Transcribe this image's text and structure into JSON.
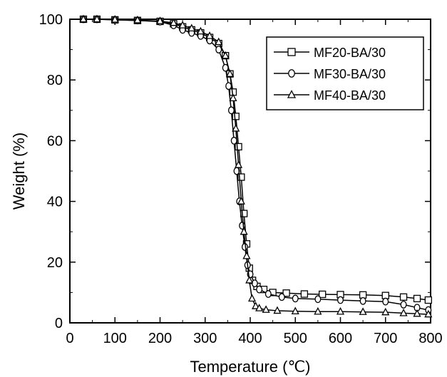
{
  "chart_data": {
    "type": "line",
    "xlabel": "Temperature (℃)",
    "ylabel": "Weight (%)",
    "xlim": [
      0,
      800
    ],
    "ylim": [
      0,
      100
    ],
    "x_ticks": [
      0,
      100,
      200,
      300,
      400,
      500,
      600,
      700,
      800
    ],
    "y_ticks": [
      0,
      20,
      40,
      60,
      80,
      100
    ],
    "grid": false,
    "legend_position": "top-right",
    "series": [
      {
        "name": "MF20-BA/30",
        "marker": "square",
        "x": [
          30,
          60,
          100,
          150,
          200,
          230,
          250,
          270,
          290,
          310,
          330,
          345,
          355,
          362,
          368,
          374,
          380,
          386,
          392,
          398,
          405,
          415,
          430,
          450,
          480,
          520,
          560,
          600,
          650,
          700,
          740,
          770,
          795
        ],
        "y": [
          100,
          100,
          99.8,
          99.6,
          99.3,
          98.5,
          97.5,
          96.5,
          95.5,
          94.0,
          92.0,
          88.0,
          82.0,
          76.0,
          68.0,
          58.0,
          48.0,
          36.0,
          26.0,
          18.0,
          14.0,
          12.0,
          11.0,
          10.0,
          9.8,
          9.5,
          9.4,
          9.3,
          9.2,
          9.0,
          8.5,
          8.0,
          7.5
        ]
      },
      {
        "name": "MF30-BA/30",
        "marker": "circle",
        "x": [
          30,
          60,
          100,
          150,
          200,
          230,
          250,
          270,
          290,
          310,
          330,
          345,
          352,
          358,
          364,
          370,
          376,
          382,
          388,
          394,
          400,
          410,
          420,
          440,
          470,
          500,
          550,
          600,
          650,
          700,
          740,
          770,
          795
        ],
        "y": [
          100,
          100,
          99.8,
          99.6,
          99.2,
          98.0,
          96.5,
          95.5,
          94.5,
          93.0,
          90.0,
          84.0,
          78.0,
          70.0,
          60.0,
          50.0,
          40.0,
          32.0,
          25.0,
          19.0,
          16.0,
          13.0,
          11.0,
          9.5,
          8.5,
          8.0,
          7.8,
          7.5,
          7.2,
          7.0,
          6.0,
          5.0,
          4.2
        ]
      },
      {
        "name": "MF40-BA/30",
        "marker": "triangle",
        "x": [
          30,
          60,
          100,
          150,
          200,
          230,
          250,
          270,
          290,
          310,
          330,
          345,
          355,
          362,
          368,
          374,
          380,
          386,
          392,
          398,
          404,
          412,
          420,
          435,
          460,
          500,
          550,
          600,
          650,
          700,
          740,
          770,
          795
        ],
        "y": [
          100,
          100,
          99.9,
          99.7,
          99.4,
          98.8,
          98.0,
          97.0,
          96.0,
          94.5,
          92.5,
          88.0,
          82.0,
          74.0,
          64.0,
          52.0,
          40.0,
          30.0,
          22.0,
          14.0,
          8.0,
          5.5,
          4.8,
          4.3,
          4.0,
          3.8,
          3.7,
          3.7,
          3.6,
          3.5,
          3.2,
          3.0,
          2.8
        ]
      }
    ]
  }
}
